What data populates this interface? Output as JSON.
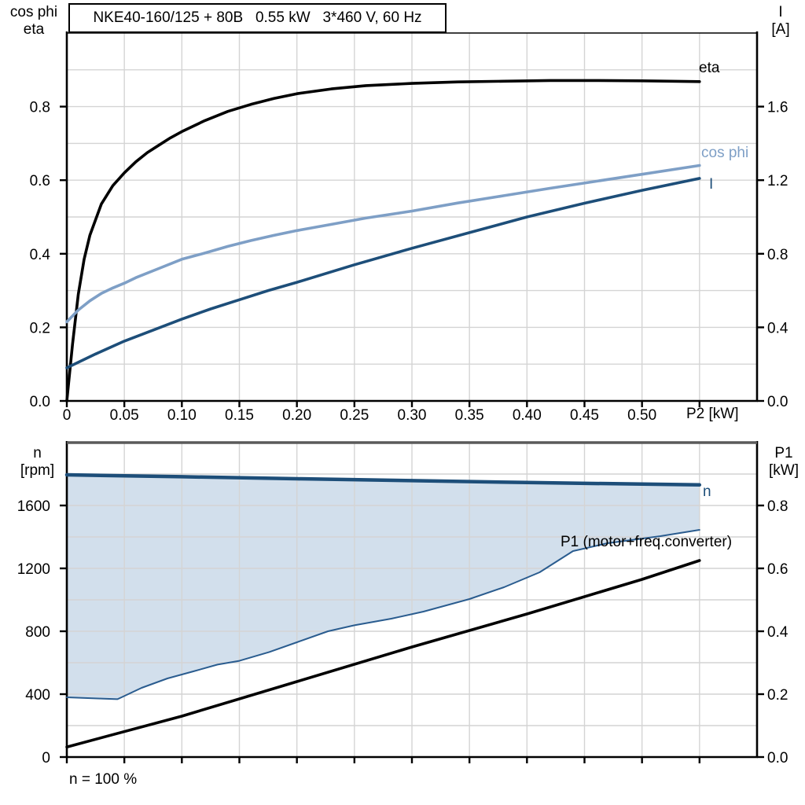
{
  "page": {
    "background": "#ffffff"
  },
  "title_box": {
    "text": "NKE40-160/125 + 80B   0.55 kW   3*460 V, 60 Hz"
  },
  "colors": {
    "eta_curve": "#000000",
    "cos_phi_curve": "#7e9fc6",
    "current_curve": "#1d4e79",
    "n_curve": "#1d4e79",
    "n_lower_curve": "#2a5c8f",
    "band_fill": "#d2dfec",
    "p1_curve": "#000000",
    "grid": "#d4d4d4",
    "axis": "#000000",
    "bottom_panel_top_border": "#5a5a5a"
  },
  "top_chart_labels": {
    "left_axis_line1": "cos phi",
    "left_axis_line2": "eta",
    "right_axis_line1": "I",
    "right_axis_line2": "[A]",
    "x_axis_label": "P2 [kW]",
    "curve_label_eta": "eta",
    "curve_label_cos_phi": "cos phi",
    "curve_label_current": "I"
  },
  "bottom_chart_labels": {
    "left_axis_line1": "n",
    "left_axis_line2": "[rpm]",
    "right_axis_line1": "P1",
    "right_axis_line2": "[kW]",
    "curve_label_n": "n",
    "curve_label_p1": "P1 (motor+freq.converter)",
    "footnote": "n = 100 %"
  },
  "chart_data": [
    {
      "type": "line",
      "title": "NKE40-160/125 + 80B   0.55 kW   3*460 V, 60 Hz",
      "x_axis": {
        "label": "P2 [kW]",
        "range": [
          0,
          0.6
        ],
        "tick_values": [
          0,
          0.05,
          0.1,
          0.15,
          0.2,
          0.25,
          0.3,
          0.35,
          0.4,
          0.45,
          0.5
        ],
        "tick_labels": [
          "0",
          "0.05",
          "0.10",
          "0.15",
          "0.20",
          "0.25",
          "0.30",
          "0.35",
          "0.40",
          "0.45",
          "0.50"
        ],
        "grid_values": [
          0.05,
          0.1,
          0.15,
          0.2,
          0.25,
          0.3,
          0.35,
          0.4,
          0.45,
          0.5,
          0.55
        ]
      },
      "y_left_axis": {
        "label": "cos phi, eta",
        "range": [
          0,
          1.0
        ],
        "tick_values": [
          0,
          0.2,
          0.4,
          0.6,
          0.8
        ],
        "tick_labels": [
          "0.0",
          "0.2",
          "0.4",
          "0.6",
          "0.8"
        ],
        "grid_values": [
          0.1,
          0.2,
          0.3,
          0.4,
          0.5,
          0.6,
          0.7,
          0.8,
          0.9
        ]
      },
      "y_right_axis": {
        "label": "I [A]",
        "range": [
          0,
          2.0
        ],
        "tick_values": [
          0,
          0.4,
          0.8,
          1.2,
          1.6
        ],
        "tick_labels": [
          "0.0",
          "0.4",
          "0.8",
          "1.2",
          "1.6"
        ]
      },
      "top_border": {
        "color": "#000000",
        "width": 1.5
      },
      "series": [
        {
          "name": "eta",
          "axis": "left",
          "color": "#000000",
          "width": 3.6,
          "points": [
            [
              0,
              0
            ],
            [
              0.005,
              0.155
            ],
            [
              0.01,
              0.29
            ],
            [
              0.015,
              0.385
            ],
            [
              0.02,
              0.45
            ],
            [
              0.03,
              0.535
            ],
            [
              0.04,
              0.585
            ],
            [
              0.05,
              0.62
            ],
            [
              0.06,
              0.65
            ],
            [
              0.07,
              0.675
            ],
            [
              0.08,
              0.695
            ],
            [
              0.09,
              0.715
            ],
            [
              0.1,
              0.732
            ],
            [
              0.12,
              0.762
            ],
            [
              0.14,
              0.787
            ],
            [
              0.16,
              0.806
            ],
            [
              0.18,
              0.822
            ],
            [
              0.2,
              0.835
            ],
            [
              0.23,
              0.848
            ],
            [
              0.26,
              0.857
            ],
            [
              0.3,
              0.863
            ],
            [
              0.34,
              0.867
            ],
            [
              0.38,
              0.869
            ],
            [
              0.42,
              0.871
            ],
            [
              0.46,
              0.871
            ],
            [
              0.5,
              0.87
            ],
            [
              0.55,
              0.868
            ]
          ]
        },
        {
          "name": "cos phi",
          "axis": "left",
          "color": "#7e9fc6",
          "width": 3.6,
          "points": [
            [
              0,
              0.215
            ],
            [
              0.01,
              0.247
            ],
            [
              0.02,
              0.272
            ],
            [
              0.03,
              0.292
            ],
            [
              0.04,
              0.307
            ],
            [
              0.05,
              0.32
            ],
            [
              0.06,
              0.335
            ],
            [
              0.08,
              0.36
            ],
            [
              0.1,
              0.385
            ],
            [
              0.12,
              0.402
            ],
            [
              0.14,
              0.42
            ],
            [
              0.16,
              0.436
            ],
            [
              0.18,
              0.45
            ],
            [
              0.2,
              0.463
            ],
            [
              0.23,
              0.48
            ],
            [
              0.26,
              0.497
            ],
            [
              0.3,
              0.516
            ],
            [
              0.34,
              0.538
            ],
            [
              0.38,
              0.558
            ],
            [
              0.42,
              0.578
            ],
            [
              0.46,
              0.597
            ],
            [
              0.5,
              0.616
            ],
            [
              0.55,
              0.64
            ]
          ]
        },
        {
          "name": "I",
          "axis": "right",
          "color": "#1d4e79",
          "width": 3.6,
          "points": [
            [
              0,
              0.18
            ],
            [
              0.025,
              0.255
            ],
            [
              0.05,
              0.325
            ],
            [
              0.075,
              0.385
            ],
            [
              0.1,
              0.445
            ],
            [
              0.125,
              0.5
            ],
            [
              0.15,
              0.55
            ],
            [
              0.175,
              0.6
            ],
            [
              0.2,
              0.645
            ],
            [
              0.25,
              0.74
            ],
            [
              0.3,
              0.83
            ],
            [
              0.35,
              0.915
            ],
            [
              0.4,
              1.0
            ],
            [
              0.45,
              1.075
            ],
            [
              0.5,
              1.145
            ],
            [
              0.55,
              1.21
            ]
          ]
        }
      ]
    },
    {
      "type": "line",
      "title": "",
      "x_axis": {
        "label": "",
        "range": [
          0,
          0.6
        ],
        "tick_values": [],
        "tick_labels": [],
        "grid_values": [
          0.05,
          0.1,
          0.15,
          0.2,
          0.25,
          0.3,
          0.35,
          0.4,
          0.45,
          0.5,
          0.55
        ]
      },
      "y_left_axis": {
        "label": "n [rpm]",
        "range": [
          0,
          2000
        ],
        "tick_values": [
          0,
          400,
          800,
          1200,
          1600
        ],
        "tick_labels": [
          "0",
          "400",
          "800",
          "1200",
          "1600"
        ],
        "grid_values": [
          200,
          400,
          600,
          800,
          1000,
          1200,
          1400,
          1600,
          1800
        ]
      },
      "y_right_axis": {
        "label": "P1 [kW]",
        "range": [
          0,
          1.0
        ],
        "tick_values": [
          0,
          0.2,
          0.4,
          0.6,
          0.8
        ],
        "tick_labels": [
          "0.0",
          "0.2",
          "0.4",
          "0.6",
          "0.8"
        ]
      },
      "top_border": {
        "color": "#5a5a5a",
        "width": 3.5
      },
      "band": {
        "upper": "n",
        "lower": "n lower boundary",
        "fill_color": "#d2dfec"
      },
      "footnote": "n = 100 %",
      "series": [
        {
          "name": "n",
          "axis": "left",
          "color": "#1d4e79",
          "width": 4.5,
          "points": [
            [
              0,
              1795
            ],
            [
              0.1,
              1783
            ],
            [
              0.2,
              1770
            ],
            [
              0.3,
              1758
            ],
            [
              0.4,
              1746
            ],
            [
              0.5,
              1736
            ],
            [
              0.55,
              1731
            ]
          ]
        },
        {
          "name": "n lower boundary",
          "axis": "left",
          "color": "#2a5c8f",
          "width": 2,
          "points": [
            [
              0,
              380
            ],
            [
              0.03,
              372
            ],
            [
              0.044,
              368
            ],
            [
              0.047,
              378
            ],
            [
              0.065,
              440
            ],
            [
              0.0875,
              500
            ],
            [
              0.11,
              545
            ],
            [
              0.131,
              588
            ],
            [
              0.15,
              612
            ],
            [
              0.176,
              668
            ],
            [
              0.2,
              730
            ],
            [
              0.227,
              800
            ],
            [
              0.25,
              838
            ],
            [
              0.282,
              880
            ],
            [
              0.31,
              925
            ],
            [
              0.35,
              1005
            ],
            [
              0.38,
              1080
            ],
            [
              0.411,
              1175
            ],
            [
              0.44,
              1310
            ],
            [
              0.47,
              1360
            ],
            [
              0.516,
              1405
            ],
            [
              0.55,
              1445
            ]
          ]
        },
        {
          "name": "P1 (motor+freq.converter)",
          "axis": "right",
          "color": "#000000",
          "width": 3.6,
          "points": [
            [
              0,
              0.032
            ],
            [
              0.1,
              0.13
            ],
            [
              0.2,
              0.24
            ],
            [
              0.3,
              0.35
            ],
            [
              0.4,
              0.455
            ],
            [
              0.5,
              0.565
            ],
            [
              0.55,
              0.625
            ]
          ]
        }
      ]
    }
  ]
}
